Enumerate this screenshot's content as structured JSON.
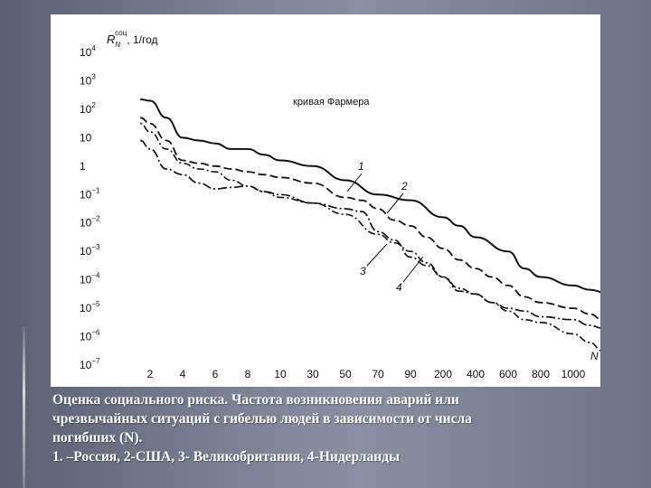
{
  "chart_data": {
    "type": "line",
    "title": "",
    "ylabel_main": "R",
    "ylabel_sub": "N",
    "ylabel_sup": "соц",
    "ylabel_unit": ", 1/год",
    "xlabel": "N",
    "annotation": "кривая Фармера",
    "x_ticks": [
      "2",
      "4",
      "6",
      "8",
      "10",
      "30",
      "50",
      "70",
      "90",
      "200",
      "400",
      "600",
      "800",
      "1000"
    ],
    "y_ticks": [
      {
        "exp": 4,
        "label": "10",
        "sup": "4"
      },
      {
        "exp": 3,
        "label": "10",
        "sup": "3"
      },
      {
        "exp": 2,
        "label": "10",
        "sup": "2"
      },
      {
        "exp": 1,
        "label": "10",
        "sup": ""
      },
      {
        "exp": 0,
        "label": "1",
        "sup": ""
      },
      {
        "exp": -1,
        "label": "10",
        "sup": "−1"
      },
      {
        "exp": -2,
        "label": "10",
        "sup": "−2"
      },
      {
        "exp": -3,
        "label": "10",
        "sup": "−3"
      },
      {
        "exp": -4,
        "label": "10",
        "sup": "−4"
      },
      {
        "exp": -5,
        "label": "10",
        "sup": "−5"
      },
      {
        "exp": -6,
        "label": "10",
        "sup": "−6"
      },
      {
        "exp": -7,
        "label": "10",
        "sup": "−7"
      }
    ],
    "ylim_exp": [
      -7,
      4
    ],
    "x_index_range": [
      0,
      15
    ],
    "series": [
      {
        "name": "1",
        "style": "solid",
        "x_index": [
          0.7,
          1.0,
          1.5,
          2.0,
          2.5,
          3.0,
          3.5,
          4.0,
          4.5,
          5.0,
          6.0,
          7.0,
          8.0,
          9.0,
          10.0,
          10.5,
          11.0,
          12.0,
          12.5,
          13.0,
          14.0,
          14.5,
          15.0
        ],
        "y_exp": [
          2.35,
          2.3,
          1.7,
          1.0,
          0.9,
          0.8,
          0.6,
          0.6,
          0.4,
          0.2,
          0.0,
          -0.5,
          -1.0,
          -1.2,
          -1.8,
          -2.1,
          -2.5,
          -3.0,
          -3.6,
          -3.9,
          -4.2,
          -4.35,
          -4.45
        ]
      },
      {
        "name": "2",
        "style": "dashed",
        "x_index": [
          0.7,
          1.0,
          1.5,
          2.0,
          2.5,
          3.0,
          3.5,
          4.0,
          4.5,
          5.0,
          6.0,
          7.0,
          7.5,
          8.0,
          8.5,
          9.0,
          9.5,
          10.0,
          10.5,
          11.0,
          11.5,
          12.0,
          12.5,
          13.0,
          14.0,
          14.5,
          14.9
        ],
        "y_exp": [
          1.7,
          1.5,
          0.9,
          0.2,
          0.1,
          0.0,
          -0.1,
          -0.2,
          -0.3,
          -0.4,
          -0.6,
          -1.1,
          -1.2,
          -1.5,
          -1.9,
          -2.1,
          -2.5,
          -2.9,
          -3.3,
          -3.6,
          -3.9,
          -4.2,
          -4.6,
          -4.8,
          -5.0,
          -5.2,
          -5.4
        ]
      },
      {
        "name": "3",
        "style": "dashdot",
        "x_index": [
          0.7,
          1.0,
          1.5,
          2.0,
          2.5,
          3.0,
          3.5,
          4.0,
          4.5,
          5.0,
          6.0,
          7.0,
          7.5,
          8.0,
          8.5,
          9.0,
          9.5,
          10.0,
          10.5,
          11.0,
          11.5,
          12.0,
          12.5,
          13.0,
          14.0,
          14.5,
          14.9
        ],
        "y_exp": [
          0.9,
          0.6,
          -0.1,
          -0.3,
          -0.6,
          -0.8,
          -0.75,
          -0.7,
          -0.9,
          -1.0,
          -1.3,
          -1.5,
          -1.6,
          -2.3,
          -2.6,
          -3.2,
          -3.5,
          -3.9,
          -4.4,
          -4.5,
          -4.8,
          -5.0,
          -5.1,
          -5.3,
          -5.4,
          -5.6,
          -5.7
        ]
      },
      {
        "name": "4",
        "style": "dotdash",
        "x_index": [
          0.7,
          1.0,
          1.5,
          2.0,
          2.5,
          3.0,
          3.5,
          4.0,
          4.5,
          5.0,
          6.0,
          7.0,
          8.0,
          8.5,
          9.0,
          9.5,
          10.0,
          10.5,
          11.0,
          11.5,
          12.0,
          12.5,
          13.0,
          14.0,
          14.5,
          14.9
        ],
        "y_exp": [
          1.5,
          1.2,
          0.6,
          0.1,
          -0.1,
          -0.2,
          -0.5,
          -0.7,
          -0.9,
          -1.1,
          -1.3,
          -1.7,
          -2.4,
          -2.7,
          -3.0,
          -3.4,
          -3.9,
          -4.3,
          -4.5,
          -4.8,
          -5.1,
          -5.4,
          -5.5,
          -5.9,
          -6.2,
          -6.5
        ]
      }
    ],
    "series_labels": [
      "1",
      "2",
      "3",
      "4"
    ]
  },
  "caption": {
    "line1": "Оценка социального риска. Частота возникновения аварий или",
    "line2": "чрезвычайных ситуаций с гибелью людей в зависимости от числа",
    "line3": "погибших (N).",
    "line4": "1. –Россия, 2-США, 3- Великобритания, 4-Нидерланды"
  }
}
